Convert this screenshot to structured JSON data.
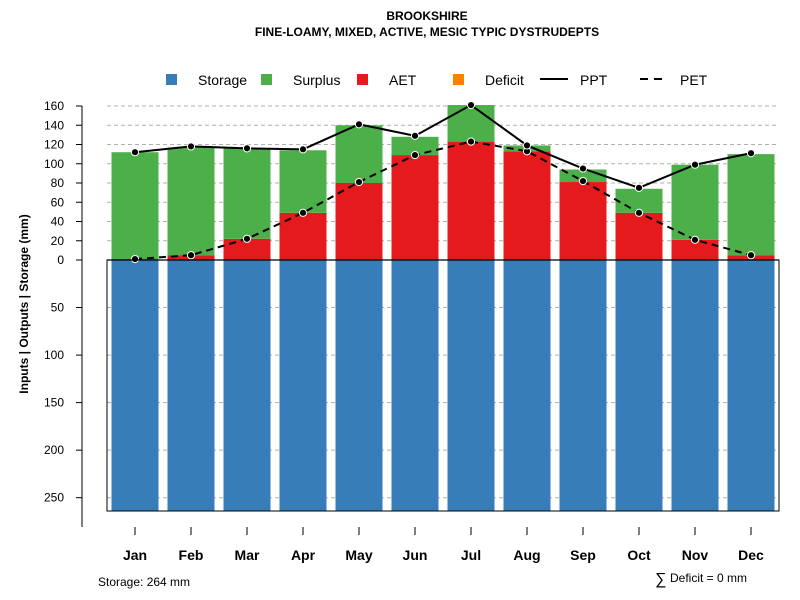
{
  "chart_data": {
    "type": "bar",
    "title": "BROOKSHIRE",
    "subtitle": "FINE-LOAMY, MIXED, ACTIVE, MESIC TYPIC DYSTRUDEPTS",
    "ylabel": "Inputs | Outputs | Storage    (mm)",
    "categories": [
      "Jan",
      "Feb",
      "Mar",
      "Apr",
      "May",
      "Jun",
      "Jul",
      "Aug",
      "Sep",
      "Oct",
      "Nov",
      "Dec"
    ],
    "positive_yticks": [
      "0",
      "20",
      "40",
      "60",
      "80",
      "100",
      "120",
      "140",
      "160"
    ],
    "negative_yticks": [
      "50",
      "100",
      "150",
      "200",
      "250"
    ],
    "ylim_positive": [
      0,
      160
    ],
    "ylim_storage": [
      0,
      264
    ],
    "series": [
      {
        "name": "Storage",
        "color": "#377EB8",
        "values": [
          264,
          264,
          264,
          264,
          264,
          264,
          264,
          264,
          264,
          264,
          264,
          264
        ]
      },
      {
        "name": "Surplus",
        "color": "#4DAF4A",
        "values": [
          111,
          112,
          94,
          65,
          60,
          19,
          38,
          6,
          13,
          25,
          78,
          105
        ]
      },
      {
        "name": "AET",
        "color": "#E41A1C",
        "values": [
          1,
          5,
          22,
          49,
          80,
          109,
          123,
          113,
          81,
          49,
          21,
          5
        ]
      },
      {
        "name": "Deficit",
        "color": "#FF7F00",
        "values": [
          0,
          0,
          0,
          0,
          0,
          0,
          0,
          0,
          0,
          0,
          0,
          0
        ]
      },
      {
        "name": "PPT",
        "color": "#000000",
        "line": "solid",
        "values": [
          112,
          118,
          116,
          115,
          141,
          129,
          161,
          119,
          95,
          75,
          99,
          111
        ]
      },
      {
        "name": "PET",
        "color": "#000000",
        "line": "dashed",
        "values": [
          1,
          5,
          22,
          49,
          81,
          109,
          123,
          113,
          82,
          49,
          21,
          5
        ]
      }
    ],
    "legend": [
      "Storage",
      "Surplus",
      "AET",
      "Deficit",
      "PPT",
      "PET"
    ],
    "legend_position": "top",
    "grid": true,
    "storage_note": "Storage: 264 mm",
    "deficit_symbol": "∑",
    "deficit_note": "Deficit = 0 mm"
  }
}
